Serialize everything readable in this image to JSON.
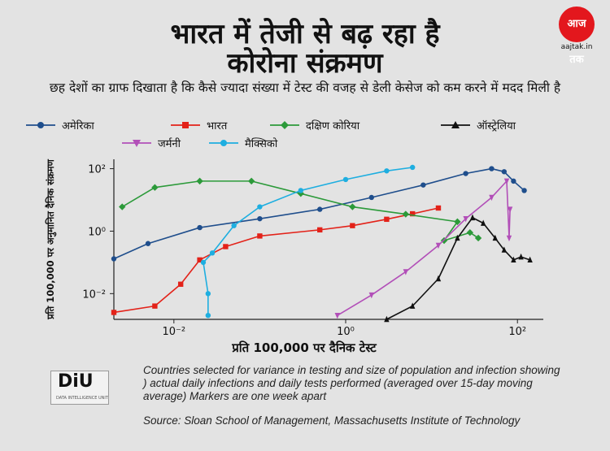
{
  "header": {
    "title_line1": "भारत में तेजी से बढ़ रहा है",
    "title_line2": "कोरोना संक्रमण",
    "subtitle": "छह देशों का ग्राफ दिखाता है कि कैसे ज्यादा संख्या में टेस्ट की वजह से डेली केसेज को कम करने में मदद मिली है"
  },
  "logo": {
    "brand": "आज तक",
    "url": "aajtak.in"
  },
  "footer": {
    "logo_text": "DiU",
    "logo_small": "DATA INTELLIGENCE UNIT",
    "note": "Countries selected for variance in testing and size of population and infection showing ) actual daily infections and daily tests performed (averaged over 15-day moving average) Markers are one week apart",
    "source": "Source: Sloan School of Management, Massachusetts Institute of Technology"
  },
  "chart_data": {
    "type": "line",
    "xscale": "log",
    "yscale": "log",
    "xlim": [
      0.002,
      200
    ],
    "ylim": [
      0.0015,
      200
    ],
    "xlabel": "प्रति 100,000 पर दैनिक टेस्ट",
    "ylabel": "प्रति 100,000 पर अनुमानित दैनिक संक्रमण",
    "x_ticks": [
      {
        "v": 0.01,
        "label": "10⁻²"
      },
      {
        "v": 1,
        "label": "10⁰"
      },
      {
        "v": 100,
        "label": "10²"
      }
    ],
    "y_ticks": [
      {
        "v": 100,
        "label": "10²"
      },
      {
        "v": 1,
        "label": "10⁰"
      },
      {
        "v": 0.01,
        "label": "10⁻²"
      }
    ],
    "grid": false,
    "legend_position": "top",
    "series": [
      {
        "name": "अमेरिका",
        "color": "#1f4e8c",
        "marker": "circle",
        "x": [
          0.002,
          0.005,
          0.02,
          0.1,
          0.5,
          2,
          8,
          25,
          50,
          70,
          90,
          120
        ],
        "y": [
          0.13,
          0.4,
          1.3,
          2.5,
          5,
          12,
          30,
          70,
          100,
          80,
          40,
          20
        ]
      },
      {
        "name": "भारत",
        "color": "#e32219",
        "marker": "square",
        "x": [
          0.002,
          0.006,
          0.012,
          0.02,
          0.04,
          0.1,
          0.5,
          1.2,
          3,
          6,
          12
        ],
        "y": [
          0.0025,
          0.004,
          0.02,
          0.12,
          0.32,
          0.7,
          1.1,
          1.5,
          2.4,
          3.6,
          5.5
        ]
      },
      {
        "name": "दक्षिण कोरिया",
        "color": "#2c9a3a",
        "marker": "diamond",
        "x": [
          0.0025,
          0.006,
          0.02,
          0.08,
          0.3,
          1.2,
          5,
          20,
          14,
          28,
          35
        ],
        "y": [
          6,
          25,
          40,
          40,
          16,
          6,
          3.5,
          2,
          0.5,
          0.9,
          0.6
        ]
      },
      {
        "name": "ऑस्ट्रेलिया",
        "color": "#111111",
        "marker": "triangle",
        "x": [
          3,
          6,
          12,
          20,
          30,
          40,
          55,
          70,
          90,
          110,
          140
        ],
        "y": [
          0.0015,
          0.004,
          0.03,
          0.6,
          2.7,
          1.8,
          0.6,
          0.25,
          0.12,
          0.15,
          0.12
        ]
      },
      {
        "name": "जर्मनी",
        "color": "#b24fb8",
        "marker": "triangle-down",
        "x": [
          0.8,
          2,
          5,
          12,
          25,
          50,
          75,
          80,
          82
        ],
        "y": [
          0.002,
          0.009,
          0.05,
          0.35,
          2.5,
          12,
          40,
          0.6,
          5
        ]
      },
      {
        "name": "मैक्सिको",
        "color": "#1eaee0",
        "marker": "circle",
        "x": [
          0.025,
          0.025,
          0.022,
          0.028,
          0.05,
          0.1,
          0.3,
          1,
          3,
          6
        ],
        "y": [
          0.002,
          0.01,
          0.1,
          0.2,
          1.5,
          6,
          20,
          45,
          85,
          110
        ]
      }
    ]
  }
}
